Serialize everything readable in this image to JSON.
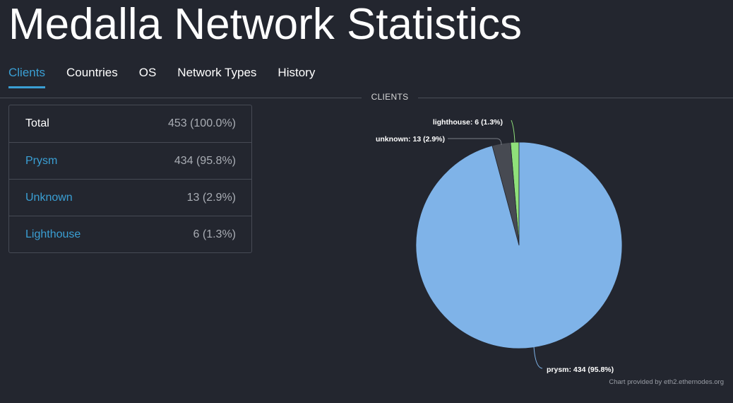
{
  "page": {
    "title": "Medalla Network Statistics"
  },
  "tabs": [
    {
      "label": "Clients",
      "active": true
    },
    {
      "label": "Countries",
      "active": false
    },
    {
      "label": "OS",
      "active": false
    },
    {
      "label": "Network Types",
      "active": false
    },
    {
      "label": "History",
      "active": false
    }
  ],
  "section": {
    "label": "CLIENTS"
  },
  "table": {
    "rows": [
      {
        "name": "Total",
        "value": "453 (100.0%)"
      },
      {
        "name": "Prysm",
        "value": "434 (95.8%)"
      },
      {
        "name": "Unknown",
        "value": "13 (2.9%)"
      },
      {
        "name": "Lighthouse",
        "value": "6 (1.3%)"
      }
    ]
  },
  "colors": {
    "accent": "#3a9fd4",
    "prysm": "#7fb3e8",
    "unknown": "#474a52",
    "lighthouse": "#8fe07a"
  },
  "chart_data": {
    "type": "pie",
    "title": "",
    "slices": [
      {
        "name": "lighthouse",
        "value": 6,
        "label": "lighthouse: 6 (1.3%)",
        "color": "#8fe07a"
      },
      {
        "name": "unknown",
        "value": 13,
        "label": "unknown: 13 (2.9%)",
        "color": "#474a52"
      },
      {
        "name": "prysm",
        "value": 434,
        "label": "prysm: 434 (95.8%)",
        "color": "#7fb3e8"
      }
    ],
    "credit": "Chart provided by eth2.ethernodes.org"
  }
}
